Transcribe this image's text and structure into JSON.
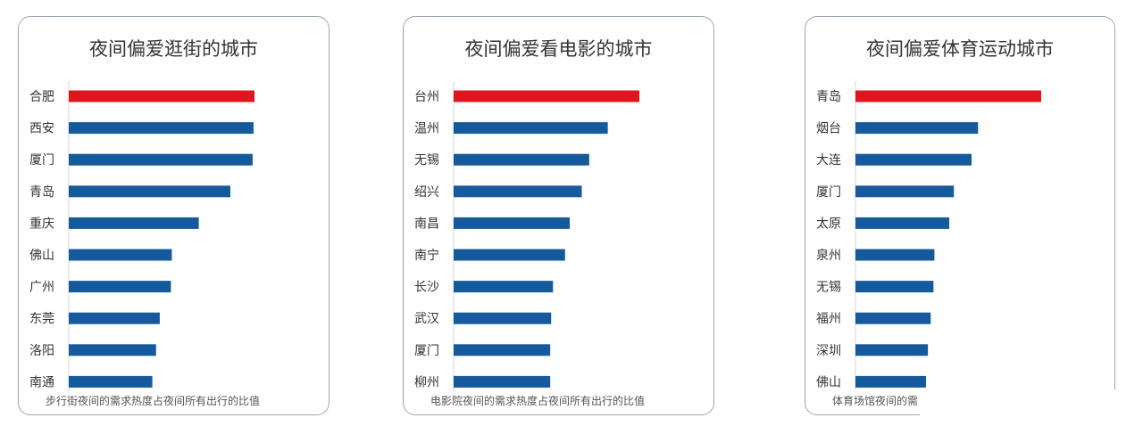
{
  "accent_color": "#e0161f",
  "bar_color": "#155a9c",
  "chart_data": [
    {
      "type": "bar",
      "orientation": "horizontal",
      "title": "夜间偏爱逛街的城市",
      "footnote": "步行街夜间的需求热度占夜间所有出行的比值",
      "categories": [
        "合肥",
        "西安",
        "厦门",
        "青岛",
        "重庆",
        "佛山",
        "广州",
        "东莞",
        "洛阳",
        "南通"
      ],
      "values": [
        100,
        99.5,
        99,
        87,
        70,
        55.5,
        55,
        49,
        47,
        45
      ],
      "highlight_index": 0
    },
    {
      "type": "bar",
      "orientation": "horizontal",
      "title": "夜间偏爱看电影的城市",
      "footnote": "电影院夜间的需求热度占夜间所有出行的比值",
      "categories": [
        "台州",
        "温州",
        "无锡",
        "绍兴",
        "南昌",
        "南宁",
        "长沙",
        "武汉",
        "厦门",
        "柳州"
      ],
      "values": [
        100,
        83,
        73,
        69,
        62.5,
        60,
        53.5,
        52.5,
        52,
        52
      ],
      "highlight_index": 0
    },
    {
      "type": "bar",
      "orientation": "horizontal",
      "title": "夜间偏爱体育运动城市",
      "footnote": "体育场馆夜间的需",
      "categories": [
        "青岛",
        "烟台",
        "大连",
        "厦门",
        "太原",
        "泉州",
        "无锡",
        "福州",
        "深圳",
        "佛山"
      ],
      "values": [
        100,
        66,
        62.5,
        53,
        50.5,
        42.5,
        42,
        40.5,
        39,
        38
      ],
      "highlight_index": 0
    }
  ]
}
